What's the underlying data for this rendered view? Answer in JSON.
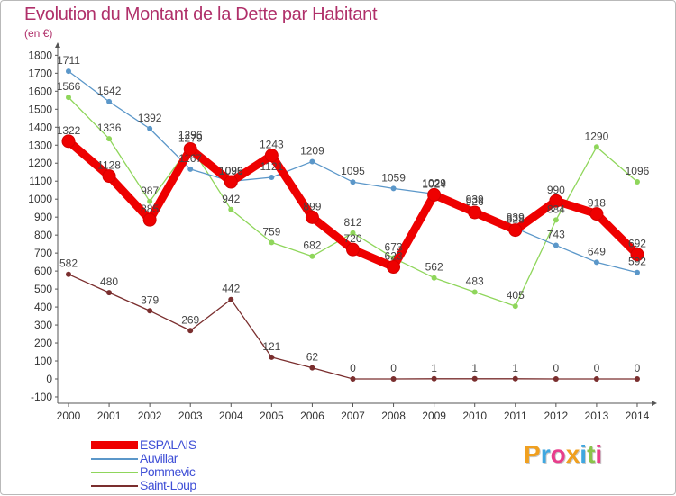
{
  "chart_data": {
    "type": "line",
    "title": "Evolution du Montant de la Dette par Habitant",
    "subtitle": "(en €)",
    "x": [
      "2000",
      "2001",
      "2002",
      "2003",
      "2004",
      "2005",
      "2006",
      "2007",
      "2008",
      "2009",
      "2010",
      "2011",
      "2012",
      "2013",
      "2014"
    ],
    "y_ticks": [
      -100,
      0,
      100,
      200,
      300,
      400,
      500,
      600,
      700,
      800,
      900,
      1000,
      1100,
      1200,
      1300,
      1400,
      1500,
      1600,
      1700,
      1800
    ],
    "ylim": [
      -100,
      1800
    ],
    "grid": false,
    "legend_position": "bottom-left",
    "series": [
      {
        "name": "ESPALAIS",
        "color": "#ee0000",
        "emphasis": true,
        "values": [
          1322,
          1128,
          885,
          1279,
          1096,
          1243,
          899,
          720,
          623,
          1024,
          926,
          828,
          990,
          918,
          692
        ]
      },
      {
        "name": "Auvillar",
        "color": "#5b97c9",
        "values": [
          1711,
          1542,
          1392,
          1167,
          1099,
          1121,
          1209,
          1095,
          1059,
          1029,
          939,
          839,
          743,
          649,
          592
        ]
      },
      {
        "name": "Pommevic",
        "color": "#8fd65b",
        "values": [
          1566,
          1336,
          987,
          1296,
          942,
          759,
          682,
          812,
          673,
          562,
          483,
          405,
          884,
          1290,
          1096
        ]
      },
      {
        "name": "Saint-Loup",
        "color": "#7a2e2e",
        "values": [
          582,
          480,
          379,
          269,
          442,
          121,
          62,
          0,
          0,
          1,
          1,
          1,
          0,
          0,
          0
        ]
      }
    ]
  },
  "branding": {
    "logo_letters": [
      "P",
      "r",
      "o",
      "x",
      "i",
      "t",
      "i"
    ],
    "logo_colors": [
      "#f0a020",
      "#3fa7e0",
      "#e83e8c",
      "#f0a020",
      "#3fa7e0",
      "#8bc34a",
      "#e83e8c"
    ]
  }
}
